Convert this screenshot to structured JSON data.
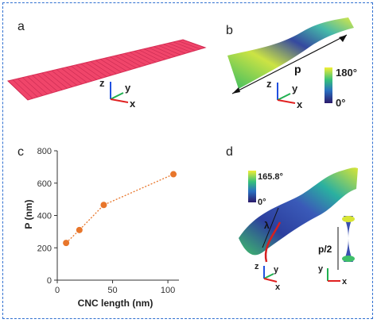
{
  "panels": {
    "a": {
      "label": "a"
    },
    "b": {
      "label": "b",
      "pitch_label": "p",
      "colorbar_max": "180°",
      "colorbar_min": "0°"
    },
    "c": {
      "label": "c"
    },
    "d": {
      "label": "d",
      "colorbar_max": "165.8°",
      "colorbar_min": "0°",
      "lambda_label": "λ",
      "half_pitch_label": "p/2"
    }
  },
  "axes_labels": {
    "z": "z",
    "y": "y",
    "x": "x"
  },
  "colors": {
    "frame": "#2f6fd0",
    "ribbon": "#f0456a",
    "series": "#e8762b",
    "axis_x": "#e02020",
    "axis_y": "#20b050",
    "axis_z": "#2050e0"
  },
  "chart_data": {
    "type": "scatter",
    "title": "",
    "xlabel": "CNC length (nm)",
    "ylabel": "P (nm)",
    "xlim": [
      0,
      110
    ],
    "ylim": [
      0,
      800
    ],
    "xticks": [
      0,
      50,
      100
    ],
    "yticks": [
      0,
      200,
      400,
      600,
      800
    ],
    "grid": false,
    "line_style": "dotted",
    "x": [
      8,
      20,
      42,
      105
    ],
    "y": [
      230,
      310,
      465,
      655
    ]
  }
}
